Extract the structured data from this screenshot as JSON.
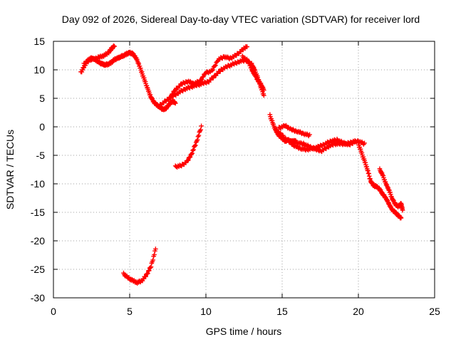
{
  "chart_data": {
    "type": "scatter",
    "title": "Day 092 of 2026, Sidereal Day-to-day VTEC variation (SDTVAR) for receiver lord",
    "xlabel": "GPS time / hours",
    "ylabel": "SDTVAR / TECUs",
    "xlim": [
      0,
      25
    ],
    "ylim": [
      -30,
      15
    ],
    "x_ticks": [
      "0",
      "5",
      "10",
      "15",
      "20",
      "25"
    ],
    "y_ticks": [
      "15",
      "10",
      "5",
      "0",
      "-5",
      "-10",
      "-15",
      "-20",
      "-25",
      "-30"
    ],
    "grid": true,
    "legend": "none",
    "marker": "plus",
    "series_color": "#ff0000",
    "series": [
      {
        "name": "segment-a",
        "x": [
          1.8,
          2.0,
          2.2,
          2.4,
          2.6,
          2.8,
          3.0,
          3.2,
          3.4,
          3.6,
          3.8,
          4.0,
          4.2,
          4.4,
          4.6,
          4.8,
          5.0,
          5.2,
          5.4,
          5.6,
          5.8,
          6.0,
          6.2,
          6.4,
          6.6,
          6.8,
          7.0,
          7.2,
          7.4,
          7.6,
          7.8,
          8.0
        ],
        "values": [
          9.5,
          10.5,
          11.5,
          12.0,
          12.0,
          11.7,
          11.3,
          11.0,
          10.9,
          11.0,
          11.3,
          11.8,
          12.0,
          12.3,
          12.5,
          12.8,
          13.0,
          12.8,
          12.2,
          11.0,
          9.5,
          8.0,
          6.5,
          5.2,
          4.3,
          3.8,
          3.4,
          3.0,
          3.3,
          4.0,
          4.5,
          4.2
        ]
      },
      {
        "name": "segment-b",
        "x": [
          2.0,
          2.5,
          3.0,
          3.3,
          3.6,
          3.8,
          4.0
        ],
        "values": [
          11.0,
          11.8,
          12.2,
          12.5,
          13.0,
          13.7,
          14.2
        ]
      },
      {
        "name": "segment-c",
        "x": [
          7.0,
          7.4,
          7.8,
          8.2,
          8.6,
          9.0,
          9.4,
          9.8,
          10.2,
          10.6,
          11.0,
          11.4,
          11.8,
          12.2,
          12.6,
          13.0,
          13.2,
          13.4,
          13.6,
          13.8
        ],
        "values": [
          3.8,
          4.6,
          5.3,
          6.0,
          6.6,
          7.0,
          7.3,
          7.6,
          8.0,
          9.0,
          10.0,
          10.6,
          11.0,
          11.5,
          11.7,
          11.0,
          10.0,
          8.6,
          7.0,
          5.5
        ]
      },
      {
        "name": "segment-d",
        "x": [
          7.6,
          8.0,
          8.4,
          8.8,
          9.2,
          9.6,
          10.0,
          10.4,
          10.8,
          11.2,
          11.6,
          12.0,
          12.4,
          12.7
        ],
        "values": [
          5.0,
          6.5,
          7.5,
          8.0,
          7.6,
          8.0,
          9.5,
          9.8,
          11.8,
          12.3,
          12.0,
          12.6,
          13.5,
          14.2
        ]
      },
      {
        "name": "segment-e",
        "x": [
          12.4,
          12.8,
          13.0,
          13.2,
          13.4,
          13.6,
          13.8
        ],
        "values": [
          12.3,
          11.5,
          10.0,
          9.2,
          8.2,
          7.5,
          6.5
        ]
      },
      {
        "name": "segment-f",
        "x": [
          8.0,
          8.4,
          8.8,
          9.1,
          9.4,
          9.7
        ],
        "values": [
          -7.0,
          -6.8,
          -6.0,
          -4.5,
          -2.5,
          0.0
        ]
      },
      {
        "name": "segment-g",
        "x": [
          4.6,
          4.9,
          5.2,
          5.5,
          5.8,
          6.1,
          6.4,
          6.7
        ],
        "values": [
          -25.8,
          -26.5,
          -27.0,
          -27.3,
          -27.0,
          -26.0,
          -24.5,
          -21.5
        ]
      },
      {
        "name": "segment-h",
        "x": [
          14.2,
          14.4,
          14.6,
          14.8,
          15.0,
          15.2,
          15.4,
          15.6,
          15.8,
          16.0,
          16.4,
          16.8,
          17.2,
          17.6,
          18.0,
          18.4,
          18.8,
          19.2,
          19.6,
          20.0,
          20.4
        ],
        "values": [
          2.0,
          0.5,
          -0.8,
          -1.5,
          -2.0,
          -2.5,
          -2.3,
          -2.6,
          -2.4,
          -2.8,
          -3.0,
          -3.5,
          -4.0,
          -4.2,
          -3.5,
          -3.0,
          -3.0,
          -3.0,
          -2.6,
          -2.5,
          -3.0
        ]
      },
      {
        "name": "segment-i",
        "x": [
          14.6,
          15.0,
          15.4,
          15.8,
          16.2,
          16.6,
          17.0,
          17.4,
          17.8,
          18.2,
          18.6,
          19.0,
          19.4,
          19.8
        ],
        "values": [
          -0.5,
          -1.5,
          -2.5,
          -3.3,
          -3.8,
          -4.0,
          -3.8,
          -3.5,
          -3.0,
          -2.5,
          -2.3,
          -2.8,
          -3.2,
          -2.5
        ]
      },
      {
        "name": "segment-j",
        "x": [
          14.8,
          15.2,
          15.6,
          16.0,
          16.4,
          16.8
        ],
        "values": [
          -0.2,
          0.2,
          -0.5,
          -0.8,
          -1.2,
          -1.5
        ]
      },
      {
        "name": "segment-k",
        "x": [
          20.0,
          20.2,
          20.4,
          20.6,
          20.8,
          21.0,
          21.2,
          21.4,
          21.6,
          21.8,
          22.0,
          22.2,
          22.4,
          22.6,
          22.8
        ],
        "values": [
          -3.0,
          -4.5,
          -6.0,
          -7.5,
          -9.5,
          -10.3,
          -10.5,
          -11.0,
          -11.8,
          -12.5,
          -13.5,
          -14.5,
          -15.0,
          -15.5,
          -16.0
        ]
      },
      {
        "name": "segment-l",
        "x": [
          21.4,
          21.6,
          21.8,
          22.0,
          22.2,
          22.4,
          22.6,
          22.8,
          22.9
        ],
        "values": [
          -7.5,
          -8.5,
          -10.0,
          -11.0,
          -12.5,
          -13.5,
          -14.0,
          -13.5,
          -14.5
        ]
      }
    ]
  }
}
